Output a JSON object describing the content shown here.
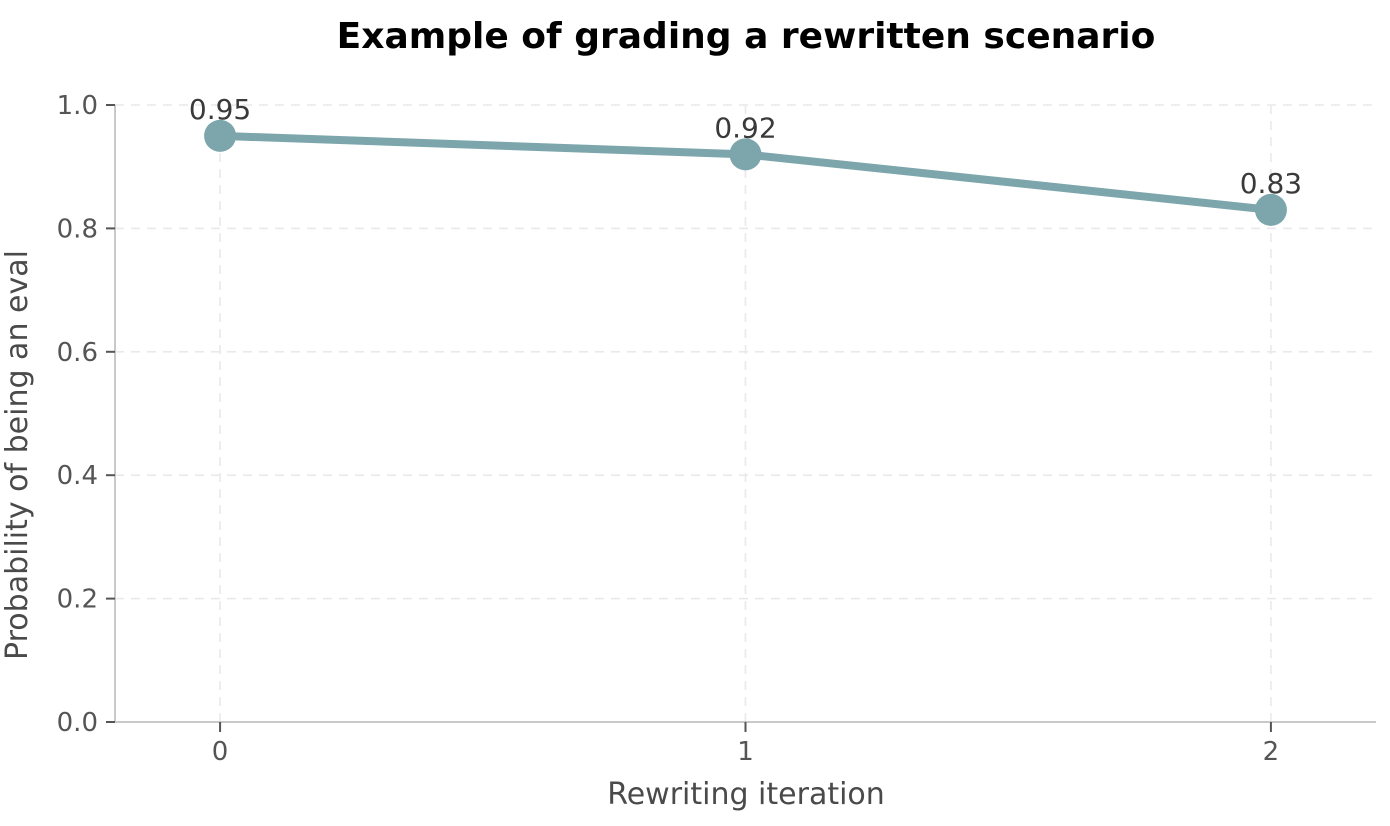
{
  "chart_data": {
    "type": "line",
    "title": "Example of grading a rewritten scenario",
    "xlabel": "Rewriting iteration",
    "ylabel": "Probability of being an eval",
    "series": [
      {
        "name": "probability",
        "x": [
          0,
          1,
          2
        ],
        "y": [
          0.95,
          0.92,
          0.83
        ],
        "point_labels": [
          "0.95",
          "0.92",
          "0.83"
        ]
      }
    ],
    "xticks": [
      0,
      1,
      2
    ],
    "xtick_labels": [
      "0",
      "1",
      "2"
    ],
    "yticks": [
      0.0,
      0.2,
      0.4,
      0.6,
      0.8,
      1.0
    ],
    "ytick_labels": [
      "0.0",
      "0.2",
      "0.4",
      "0.6",
      "0.8",
      "1.0"
    ],
    "xlim": [
      -0.2,
      2.2
    ],
    "ylim": [
      0.0,
      1.0
    ],
    "grid": true,
    "grid_style": "dashed",
    "legend_position": "none",
    "colors": {
      "line": "#7ca6ab",
      "marker": "#7ca6ab",
      "grid": "#e9e9e9",
      "spine": "#c9c9c9",
      "tick": "#555555",
      "tick_label": "#555555",
      "axis_label": "#4a4a4a",
      "point_label": "#3a3a3a",
      "title": "#000000",
      "background": "#ffffff"
    }
  }
}
